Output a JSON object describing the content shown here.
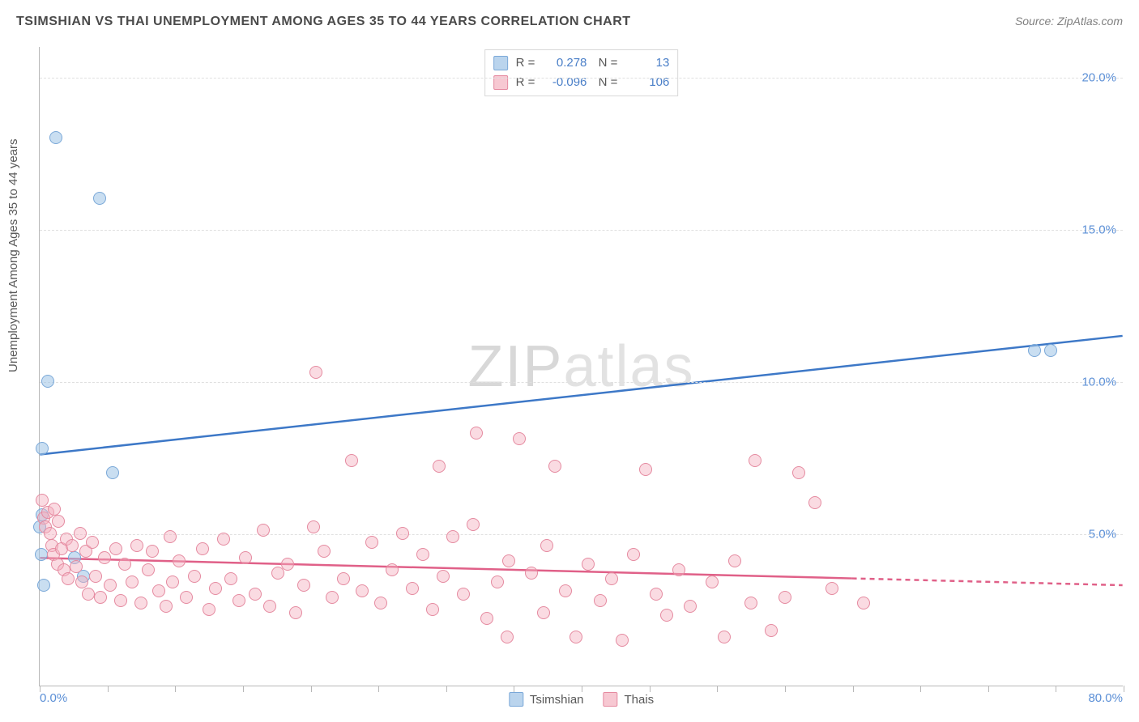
{
  "title": "TSIMSHIAN VS THAI UNEMPLOYMENT AMONG AGES 35 TO 44 YEARS CORRELATION CHART",
  "source": "Source: ZipAtlas.com",
  "ylabel": "Unemployment Among Ages 35 to 44 years",
  "watermark_bold": "ZIP",
  "watermark_thin": "atlas",
  "chart": {
    "type": "scatter",
    "xlim": [
      0,
      80
    ],
    "ylim": [
      0,
      21
    ],
    "x_ticks_minor": [
      0,
      5,
      10,
      15,
      20,
      25,
      30,
      35,
      40,
      45,
      50,
      55,
      60,
      65,
      70,
      75,
      80
    ],
    "y_gridlines": [
      5,
      10,
      15,
      20
    ],
    "y_tick_labels": [
      {
        "v": 5,
        "label": "5.0%"
      },
      {
        "v": 10,
        "label": "10.0%"
      },
      {
        "v": 15,
        "label": "15.0%"
      },
      {
        "v": 20,
        "label": "20.0%"
      }
    ],
    "x_tick_labels": [
      {
        "v": 0,
        "label": "0.0%",
        "align": "left"
      },
      {
        "v": 80,
        "label": "80.0%",
        "align": "right"
      }
    ],
    "background_color": "#ffffff",
    "grid_color": "#e0e0e0",
    "grid_dash": "4,4",
    "axis_color": "#b8b8b8",
    "label_color": "#5b8fd6",
    "label_fontsize": 15,
    "title_fontsize": 16,
    "title_color": "#4a4a4a",
    "marker_size": 16,
    "marker_shape": "circle",
    "series": [
      {
        "name": "Tsimshian",
        "color_fill": "rgba(156,194,230,0.55)",
        "color_stroke": "#7aa8d8",
        "legend_swatch": "#a8c8e8",
        "R": "0.278",
        "N": "13",
        "trend": {
          "x1": 0,
          "y1": 7.6,
          "x2": 80,
          "y2": 11.5,
          "color": "#3d78c7",
          "width": 2.5,
          "dash_after_x": null
        },
        "points": [
          {
            "x": 1.2,
            "y": 18.0
          },
          {
            "x": 4.4,
            "y": 16.0
          },
          {
            "x": 0.6,
            "y": 10.0
          },
          {
            "x": 0.2,
            "y": 7.8
          },
          {
            "x": 5.4,
            "y": 7.0
          },
          {
            "x": 0.2,
            "y": 5.6
          },
          {
            "x": 2.6,
            "y": 4.2
          },
          {
            "x": 0.3,
            "y": 3.3
          },
          {
            "x": 0.1,
            "y": 4.3
          },
          {
            "x": 3.2,
            "y": 3.6
          },
          {
            "x": 73.4,
            "y": 11.0
          },
          {
            "x": 74.6,
            "y": 11.0
          },
          {
            "x": 0.0,
            "y": 5.2
          }
        ]
      },
      {
        "name": "Thais",
        "color_fill": "rgba(244,176,191,0.45)",
        "color_stroke": "#e58aa0",
        "legend_swatch": "#f0b4c2",
        "R": "-0.096",
        "N": "106",
        "trend": {
          "x1": 0,
          "y1": 4.2,
          "x2": 80,
          "y2": 3.3,
          "color": "#e06088",
          "width": 2.5,
          "dash_after_x": 60
        },
        "points": [
          {
            "x": 0.2,
            "y": 6.1
          },
          {
            "x": 0.3,
            "y": 5.5
          },
          {
            "x": 0.6,
            "y": 5.7
          },
          {
            "x": 0.4,
            "y": 5.2
          },
          {
            "x": 0.8,
            "y": 5.0
          },
          {
            "x": 0.9,
            "y": 4.6
          },
          {
            "x": 1.1,
            "y": 5.8
          },
          {
            "x": 1.0,
            "y": 4.3
          },
          {
            "x": 1.3,
            "y": 4.0
          },
          {
            "x": 1.4,
            "y": 5.4
          },
          {
            "x": 1.6,
            "y": 4.5
          },
          {
            "x": 1.8,
            "y": 3.8
          },
          {
            "x": 2.0,
            "y": 4.8
          },
          {
            "x": 2.1,
            "y": 3.5
          },
          {
            "x": 2.4,
            "y": 4.6
          },
          {
            "x": 2.7,
            "y": 3.9
          },
          {
            "x": 3.0,
            "y": 5.0
          },
          {
            "x": 3.1,
            "y": 3.4
          },
          {
            "x": 3.4,
            "y": 4.4
          },
          {
            "x": 3.6,
            "y": 3.0
          },
          {
            "x": 3.9,
            "y": 4.7
          },
          {
            "x": 4.1,
            "y": 3.6
          },
          {
            "x": 4.5,
            "y": 2.9
          },
          {
            "x": 4.8,
            "y": 4.2
          },
          {
            "x": 5.2,
            "y": 3.3
          },
          {
            "x": 5.6,
            "y": 4.5
          },
          {
            "x": 6.0,
            "y": 2.8
          },
          {
            "x": 6.3,
            "y": 4.0
          },
          {
            "x": 6.8,
            "y": 3.4
          },
          {
            "x": 7.2,
            "y": 4.6
          },
          {
            "x": 7.5,
            "y": 2.7
          },
          {
            "x": 8.0,
            "y": 3.8
          },
          {
            "x": 8.3,
            "y": 4.4
          },
          {
            "x": 8.8,
            "y": 3.1
          },
          {
            "x": 9.3,
            "y": 2.6
          },
          {
            "x": 9.6,
            "y": 4.9
          },
          {
            "x": 9.8,
            "y": 3.4
          },
          {
            "x": 10.3,
            "y": 4.1
          },
          {
            "x": 10.8,
            "y": 2.9
          },
          {
            "x": 11.4,
            "y": 3.6
          },
          {
            "x": 12.0,
            "y": 4.5
          },
          {
            "x": 12.5,
            "y": 2.5
          },
          {
            "x": 13.0,
            "y": 3.2
          },
          {
            "x": 13.6,
            "y": 4.8
          },
          {
            "x": 14.1,
            "y": 3.5
          },
          {
            "x": 14.7,
            "y": 2.8
          },
          {
            "x": 15.2,
            "y": 4.2
          },
          {
            "x": 15.9,
            "y": 3.0
          },
          {
            "x": 16.5,
            "y": 5.1
          },
          {
            "x": 17.0,
            "y": 2.6
          },
          {
            "x": 17.6,
            "y": 3.7
          },
          {
            "x": 18.3,
            "y": 4.0
          },
          {
            "x": 18.9,
            "y": 2.4
          },
          {
            "x": 19.5,
            "y": 3.3
          },
          {
            "x": 20.2,
            "y": 5.2
          },
          {
            "x": 20.4,
            "y": 10.3
          },
          {
            "x": 21.0,
            "y": 4.4
          },
          {
            "x": 21.6,
            "y": 2.9
          },
          {
            "x": 22.4,
            "y": 3.5
          },
          {
            "x": 23.0,
            "y": 7.4
          },
          {
            "x": 23.8,
            "y": 3.1
          },
          {
            "x": 24.5,
            "y": 4.7
          },
          {
            "x": 25.2,
            "y": 2.7
          },
          {
            "x": 26.0,
            "y": 3.8
          },
          {
            "x": 26.8,
            "y": 5.0
          },
          {
            "x": 27.5,
            "y": 3.2
          },
          {
            "x": 28.3,
            "y": 4.3
          },
          {
            "x": 29.0,
            "y": 2.5
          },
          {
            "x": 29.5,
            "y": 7.2
          },
          {
            "x": 29.8,
            "y": 3.6
          },
          {
            "x": 30.5,
            "y": 4.9
          },
          {
            "x": 31.3,
            "y": 3.0
          },
          {
            "x": 32.0,
            "y": 5.3
          },
          {
            "x": 32.2,
            "y": 8.3
          },
          {
            "x": 33.0,
            "y": 2.2
          },
          {
            "x": 33.8,
            "y": 3.4
          },
          {
            "x": 34.5,
            "y": 1.6
          },
          {
            "x": 34.6,
            "y": 4.1
          },
          {
            "x": 35.4,
            "y": 8.1
          },
          {
            "x": 36.3,
            "y": 3.7
          },
          {
            "x": 37.2,
            "y": 2.4
          },
          {
            "x": 37.4,
            "y": 4.6
          },
          {
            "x": 38.0,
            "y": 7.2
          },
          {
            "x": 38.8,
            "y": 3.1
          },
          {
            "x": 39.6,
            "y": 1.6
          },
          {
            "x": 40.5,
            "y": 4.0
          },
          {
            "x": 41.4,
            "y": 2.8
          },
          {
            "x": 42.2,
            "y": 3.5
          },
          {
            "x": 43.0,
            "y": 1.5
          },
          {
            "x": 43.8,
            "y": 4.3
          },
          {
            "x": 44.7,
            "y": 7.1
          },
          {
            "x": 45.5,
            "y": 3.0
          },
          {
            "x": 46.3,
            "y": 2.3
          },
          {
            "x": 47.2,
            "y": 3.8
          },
          {
            "x": 48.0,
            "y": 2.6
          },
          {
            "x": 49.6,
            "y": 3.4
          },
          {
            "x": 50.5,
            "y": 1.6
          },
          {
            "x": 51.3,
            "y": 4.1
          },
          {
            "x": 52.5,
            "y": 2.7
          },
          {
            "x": 52.8,
            "y": 7.4
          },
          {
            "x": 54.0,
            "y": 1.8
          },
          {
            "x": 55.0,
            "y": 2.9
          },
          {
            "x": 56.0,
            "y": 7.0
          },
          {
            "x": 57.2,
            "y": 6.0
          },
          {
            "x": 58.5,
            "y": 3.2
          },
          {
            "x": 60.8,
            "y": 2.7
          }
        ]
      }
    ]
  },
  "legend_bottom": [
    {
      "swatch": "blue",
      "label": "Tsimshian"
    },
    {
      "swatch": "pink",
      "label": "Thais"
    }
  ]
}
